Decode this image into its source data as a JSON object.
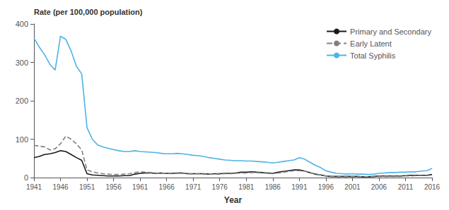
{
  "chart_data": {
    "type": "line",
    "xlabel": "Year",
    "ylabel": "Rate (per 100,000 population)",
    "x": [
      1941,
      1942,
      1943,
      1944,
      1945,
      1946,
      1947,
      1948,
      1949,
      1950,
      1951,
      1952,
      1953,
      1954,
      1955,
      1956,
      1957,
      1958,
      1959,
      1960,
      1961,
      1962,
      1963,
      1964,
      1965,
      1966,
      1967,
      1968,
      1969,
      1970,
      1971,
      1972,
      1973,
      1974,
      1975,
      1976,
      1977,
      1978,
      1979,
      1980,
      1981,
      1982,
      1983,
      1984,
      1985,
      1986,
      1987,
      1988,
      1989,
      1990,
      1991,
      1992,
      1993,
      1994,
      1995,
      1996,
      1997,
      1998,
      1999,
      2000,
      2001,
      2002,
      2003,
      2004,
      2005,
      2006,
      2007,
      2008,
      2009,
      2010,
      2011,
      2012,
      2013,
      2014,
      2015,
      2016
    ],
    "series": [
      {
        "name": "Primary and Secondary",
        "color": "#1a1a1a",
        "line_style": "solid",
        "values": [
          52,
          55,
          60,
          62,
          65,
          70,
          68,
          60,
          52,
          45,
          10,
          7,
          6,
          5,
          4,
          4,
          4,
          5,
          5,
          9,
          11,
          12,
          12,
          11,
          12,
          11,
          11,
          12,
          12,
          10,
          10,
          10,
          10,
          9,
          10,
          10,
          11,
          11,
          12,
          14,
          14,
          15,
          14,
          13,
          12,
          11,
          14,
          16,
          18,
          20,
          20,
          17,
          13,
          9,
          7,
          4,
          3,
          3,
          3,
          3,
          3,
          3,
          2,
          2,
          3,
          4,
          4,
          4,
          4,
          4,
          5,
          6,
          6,
          6,
          6,
          8
        ]
      },
      {
        "name": "Early Latent",
        "color": "#808080",
        "line_style": "dashed",
        "values": [
          84,
          82,
          80,
          72,
          75,
          88,
          108,
          100,
          88,
          72,
          20,
          15,
          12,
          10,
          9,
          8,
          8,
          9,
          10,
          13,
          15,
          14,
          13,
          12,
          12,
          11,
          10,
          11,
          11,
          10,
          9,
          10,
          9,
          9,
          9,
          9,
          10,
          10,
          11,
          12,
          12,
          13,
          13,
          12,
          11,
          10,
          12,
          14,
          16,
          18,
          18,
          17,
          13,
          9,
          7,
          4,
          3,
          2,
          2,
          2,
          2,
          2,
          2,
          2,
          2,
          3,
          3,
          3,
          3,
          3,
          4,
          4,
          5,
          5,
          5,
          7
        ]
      },
      {
        "name": "Total Syphilis",
        "color": "#4db3e6",
        "line_style": "solid",
        "values": [
          363,
          340,
          320,
          295,
          280,
          368,
          360,
          330,
          290,
          270,
          130,
          100,
          85,
          80,
          76,
          73,
          70,
          68,
          68,
          70,
          68,
          67,
          66,
          65,
          63,
          62,
          62,
          63,
          62,
          60,
          58,
          57,
          55,
          52,
          50,
          48,
          46,
          45,
          44,
          44,
          43,
          43,
          42,
          41,
          40,
          38,
          40,
          42,
          44,
          46,
          52,
          48,
          40,
          32,
          26,
          18,
          14,
          11,
          10,
          9,
          10,
          9,
          9,
          8,
          9,
          11,
          12,
          13,
          13,
          14,
          14,
          15,
          15,
          17,
          18,
          24
        ]
      }
    ],
    "xlim": [
      1941,
      2016
    ],
    "xticks": [
      1941,
      1946,
      1951,
      1956,
      1961,
      1966,
      1971,
      1976,
      1981,
      1986,
      1991,
      1996,
      2001,
      2006,
      2011,
      2016
    ],
    "ylim": [
      0,
      400
    ],
    "yticks": [
      0,
      100,
      200,
      300,
      400
    ],
    "grid": false,
    "legend": "upper right"
  }
}
